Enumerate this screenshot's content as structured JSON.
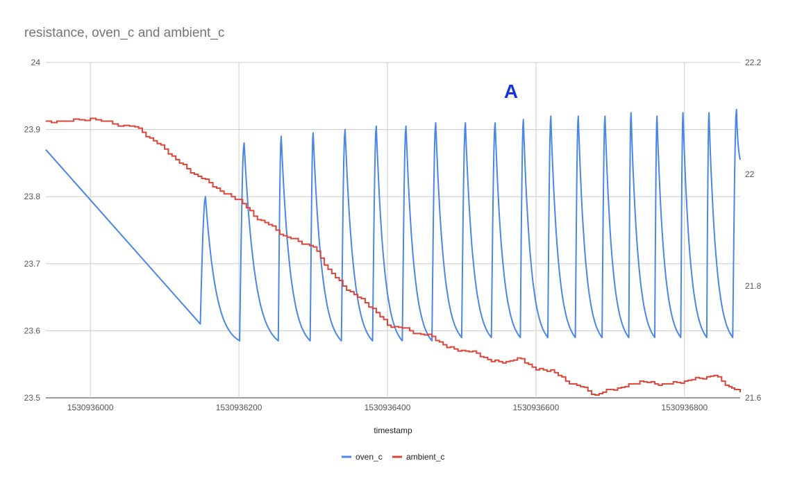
{
  "chart_data": {
    "type": "line",
    "title": "resistance, oven_c and ambient_c",
    "xlabel": "timestamp",
    "x_range": [
      1530935940,
      1530936875
    ],
    "x_ticks": [
      1530936000,
      1530936200,
      1530936400,
      1530936600,
      1530936800
    ],
    "y_left": {
      "range": [
        23.5,
        24.0
      ],
      "ticks": [
        23.5,
        23.6,
        23.7,
        23.8,
        23.9,
        24
      ]
    },
    "y_right": {
      "range": [
        21.6,
        22.2
      ],
      "ticks": [
        21.6,
        21.8,
        22,
        22.2
      ]
    },
    "annotation": "A",
    "grid": true,
    "legend_position": "bottom",
    "series": [
      {
        "name": "oven_c",
        "axis": "left",
        "color": "#4a86e8",
        "style": "sawtooth",
        "start": {
          "x": 1530935940,
          "y": 23.87
        },
        "first_trough": {
          "x": 1530936148,
          "y": 23.61
        },
        "cycles": [
          {
            "peak_x": 1530936155,
            "peak": 23.8,
            "trough_x": 1530936201,
            "trough": 23.585
          },
          {
            "peak_x": 1530936207,
            "peak": 23.88,
            "trough_x": 1530936253,
            "trough": 23.585
          },
          {
            "peak_x": 1530936257,
            "peak": 23.89,
            "trough_x": 1530936296,
            "trough": 23.585
          },
          {
            "peak_x": 1530936300,
            "peak": 23.895,
            "trough_x": 1530936338,
            "trough": 23.585
          },
          {
            "peak_x": 1530936343,
            "peak": 23.9,
            "trough_x": 1530936380,
            "trough": 23.585
          },
          {
            "peak_x": 1530936385,
            "peak": 23.905,
            "trough_x": 1530936420,
            "trough": 23.585
          },
          {
            "peak_x": 1530936425,
            "peak": 23.905,
            "trough_x": 1530936460,
            "trough": 23.585
          },
          {
            "peak_x": 1530936465,
            "peak": 23.91,
            "trough_x": 1530936500,
            "trough": 23.59
          },
          {
            "peak_x": 1530936505,
            "peak": 23.91,
            "trough_x": 1530936540,
            "trough": 23.59
          },
          {
            "peak_x": 1530936545,
            "peak": 23.91,
            "trough_x": 1530936579,
            "trough": 23.59
          },
          {
            "peak_x": 1530936583,
            "peak": 23.915,
            "trough_x": 1530936616,
            "trough": 23.59
          },
          {
            "peak_x": 1530936620,
            "peak": 23.92,
            "trough_x": 1530936653,
            "trough": 23.59
          },
          {
            "peak_x": 1530936657,
            "peak": 23.92,
            "trough_x": 1530936689,
            "trough": 23.59
          },
          {
            "peak_x": 1530936693,
            "peak": 23.92,
            "trough_x": 1530936725,
            "trough": 23.59
          },
          {
            "peak_x": 1530936728,
            "peak": 23.925,
            "trough_x": 1530936760,
            "trough": 23.59
          },
          {
            "peak_x": 1530936763,
            "peak": 23.92,
            "trough_x": 1530936795,
            "trough": 23.59
          },
          {
            "peak_x": 1530936798,
            "peak": 23.925,
            "trough_x": 1530936830,
            "trough": 23.59
          },
          {
            "peak_x": 1530936833,
            "peak": 23.925,
            "trough_x": 1530936865,
            "trough": 23.59
          },
          {
            "peak_x": 1530936870,
            "peak": 23.93
          }
        ],
        "end": {
          "x": 1530936875,
          "y": 23.855
        }
      },
      {
        "name": "ambient_c",
        "axis": "right",
        "color": "#db4437",
        "style": "step",
        "x": [
          1530935940,
          1530935970,
          1530936000,
          1530936030,
          1530936060,
          1530936080,
          1530936100,
          1530936120,
          1530936140,
          1530936160,
          1530936180,
          1530936200,
          1530936220,
          1530936240,
          1530936260,
          1530936280,
          1530936300,
          1530936320,
          1530936340,
          1530936360,
          1530936380,
          1530936400,
          1530936420,
          1530936440,
          1530936460,
          1530936480,
          1530936500,
          1530936520,
          1530936540,
          1530936560,
          1530936580,
          1530936600,
          1530936620,
          1530936640,
          1530936660,
          1530936680,
          1530936700,
          1530936720,
          1530936740,
          1530936760,
          1530936780,
          1530936800,
          1530936820,
          1530936840,
          1530936860,
          1530936875
        ],
        "y": [
          22.095,
          22.095,
          22.1,
          22.09,
          22.085,
          22.065,
          22.045,
          22.02,
          22.0,
          21.985,
          21.965,
          21.955,
          21.925,
          21.91,
          21.89,
          21.88,
          21.87,
          21.83,
          21.8,
          21.78,
          21.76,
          21.73,
          21.725,
          21.715,
          21.71,
          21.69,
          21.685,
          21.68,
          21.665,
          21.665,
          21.67,
          21.65,
          21.65,
          21.63,
          21.62,
          21.605,
          21.615,
          21.62,
          21.63,
          21.625,
          21.625,
          21.63,
          21.635,
          21.64,
          21.62,
          21.61
        ]
      }
    ]
  }
}
